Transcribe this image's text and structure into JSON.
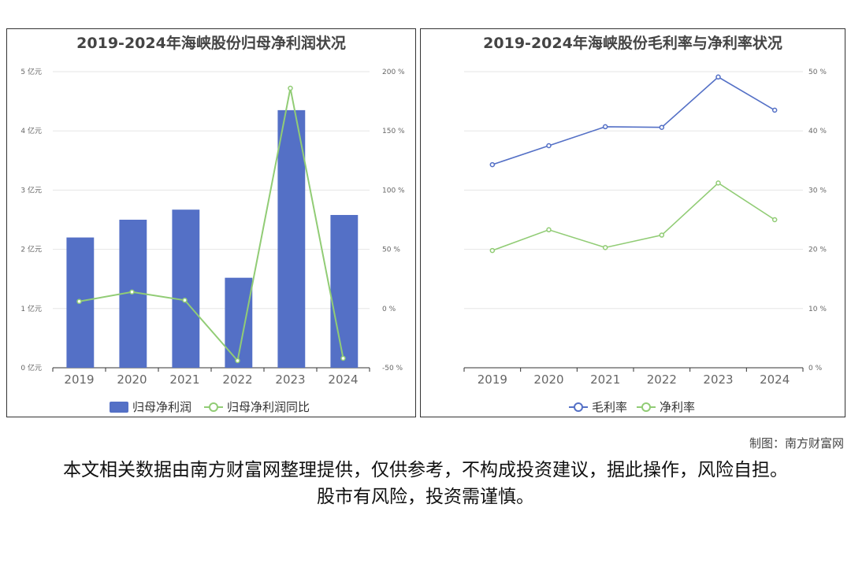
{
  "colors": {
    "bar": "#5470c6",
    "line_green": "#91cc75",
    "line_blue": "#5470c6",
    "grid": "#e6e6e6",
    "axis_text": "#666666",
    "title": "#444444"
  },
  "chart_data": [
    {
      "type": "bar",
      "title": "2019-2024年海峡股份归母净利润状况",
      "categories": [
        "2019",
        "2020",
        "2021",
        "2022",
        "2023",
        "2024"
      ],
      "series": [
        {
          "name": "归母净利润",
          "type": "bar",
          "axis": "left",
          "values": [
            2.2,
            2.5,
            2.67,
            1.52,
            4.35,
            2.58
          ]
        },
        {
          "name": "归母净利润同比",
          "type": "line",
          "axis": "right",
          "values": [
            6,
            14,
            7,
            -44,
            186,
            -42
          ]
        }
      ],
      "y_left": {
        "min": 0,
        "max": 5,
        "ticks": [
          "0 亿元",
          "1 亿元",
          "2 亿元",
          "3 亿元",
          "4 亿元",
          "5 亿元"
        ]
      },
      "y_right": {
        "min": -50,
        "max": 200,
        "ticks": [
          "-50 %",
          "0 %",
          "50 %",
          "100 %",
          "150 %",
          "200 %"
        ]
      },
      "legend": "bottom",
      "grid": true
    },
    {
      "type": "line",
      "title": "2019-2024年海峡股份毛利率与净利率状况",
      "categories": [
        "2019",
        "2020",
        "2021",
        "2022",
        "2023",
        "2024"
      ],
      "series": [
        {
          "name": "毛利率",
          "values": [
            34.3,
            37.5,
            40.7,
            40.6,
            49.1,
            43.5
          ]
        },
        {
          "name": "净利率",
          "values": [
            19.8,
            23.3,
            20.3,
            22.4,
            31.2,
            25.0
          ]
        }
      ],
      "y_right": {
        "min": 0,
        "max": 50,
        "ticks": [
          "0 %",
          "10 %",
          "20 %",
          "30 %",
          "40 %",
          "50 %"
        ]
      },
      "legend": "bottom",
      "grid": true
    }
  ],
  "footer": {
    "credit": "制图：南方财富网",
    "disclaimer": "本文相关数据由南方财富网整理提供，仅供参考，不构成投资建议，据此操作，风险自担。股市有风险，投资需谨慎。"
  }
}
